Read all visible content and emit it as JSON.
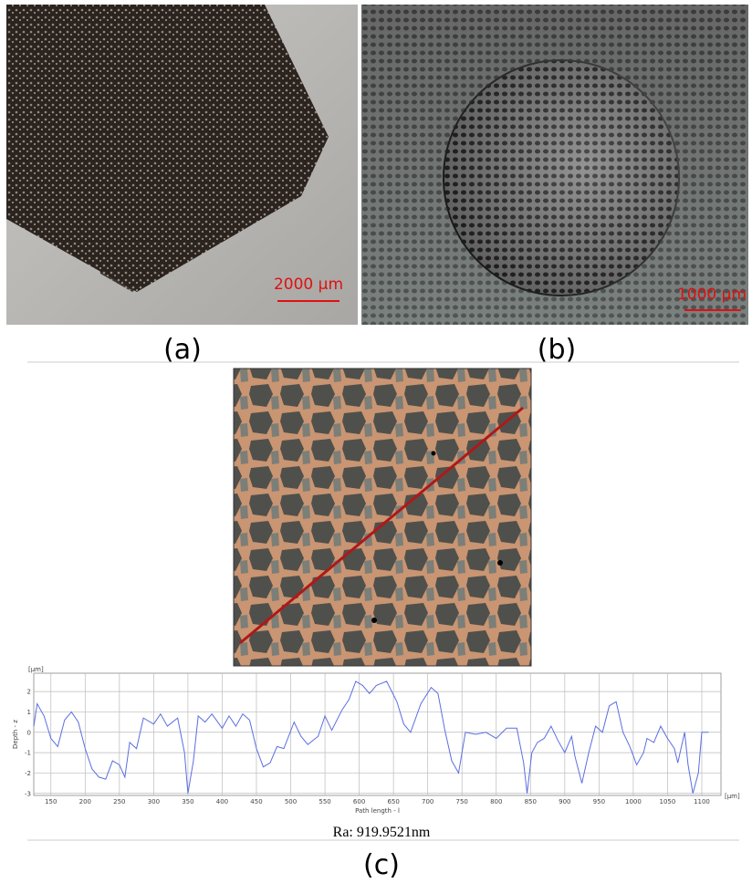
{
  "panels": {
    "a": {
      "caption": "(a)",
      "scale_bar": "2000 µm"
    },
    "b": {
      "caption": "(b)",
      "scale_bar": "1000 µm"
    },
    "c": {
      "caption": "(c)",
      "ra": "Ra: 919.9521nm"
    }
  },
  "chart_data": {
    "type": "line",
    "x_label": "Path length - l",
    "y_label": "Depth - z",
    "x_unit": "[µm]",
    "y_unit": "[µm]",
    "color": "#5b6ee1",
    "grid": true,
    "x": [
      125,
      130,
      140,
      150,
      160,
      170,
      180,
      190,
      200,
      210,
      220,
      230,
      240,
      250,
      258,
      265,
      275,
      285,
      300,
      310,
      320,
      335,
      345,
      350,
      358,
      365,
      375,
      385,
      400,
      410,
      420,
      430,
      440,
      450,
      460,
      470,
      480,
      490,
      505,
      515,
      525,
      540,
      550,
      560,
      575,
      585,
      595,
      605,
      615,
      625,
      640,
      655,
      665,
      675,
      690,
      705,
      715,
      725,
      735,
      745,
      755,
      770,
      785,
      800,
      815,
      830,
      840,
      845,
      852,
      860,
      870,
      880,
      890,
      900,
      910,
      915,
      925,
      935,
      945,
      955,
      965,
      975,
      985,
      995,
      1005,
      1015,
      1020,
      1030,
      1040,
      1050,
      1060,
      1065,
      1075,
      1080,
      1087,
      1095,
      1100,
      1110
    ],
    "values": [
      0.3,
      1.4,
      0.8,
      -0.3,
      -0.7,
      0.6,
      1.0,
      0.5,
      -0.8,
      -1.8,
      -2.2,
      -2.3,
      -1.4,
      -1.6,
      -2.2,
      -0.5,
      -0.8,
      0.7,
      0.4,
      0.9,
      0.3,
      0.7,
      -1.0,
      -3.0,
      -1.4,
      0.8,
      0.5,
      0.9,
      0.2,
      0.8,
      0.3,
      0.9,
      0.6,
      -0.8,
      -1.7,
      -1.5,
      -0.7,
      -0.8,
      0.5,
      -0.2,
      -0.6,
      -0.2,
      0.8,
      0.1,
      1.1,
      1.6,
      2.5,
      2.3,
      1.9,
      2.3,
      2.5,
      1.5,
      0.4,
      0.0,
      1.4,
      2.2,
      1.9,
      0.1,
      -1.4,
      -2.0,
      0.0,
      -0.1,
      0.0,
      -0.3,
      0.2,
      0.2,
      -1.5,
      -3.0,
      -1.0,
      -0.5,
      -0.3,
      0.3,
      -0.4,
      -1.0,
      -0.2,
      -1.2,
      -2.5,
      -1.0,
      0.3,
      0.0,
      1.3,
      1.5,
      0.0,
      -0.7,
      -1.6,
      -1.0,
      -0.3,
      -0.5,
      0.3,
      -0.3,
      -0.8,
      -1.5,
      0.0,
      -1.6,
      -3.0,
      -2.0,
      0.0,
      0.0
    ],
    "xlim": [
      125,
      1128
    ],
    "ylim": [
      -3.1,
      2.9
    ],
    "xticks": [
      150,
      200,
      250,
      300,
      350,
      400,
      450,
      500,
      550,
      600,
      650,
      700,
      750,
      800,
      850,
      900,
      950,
      1000,
      1050,
      1100
    ],
    "yticks": [
      2,
      1,
      0,
      -1,
      -2,
      -3
    ]
  }
}
